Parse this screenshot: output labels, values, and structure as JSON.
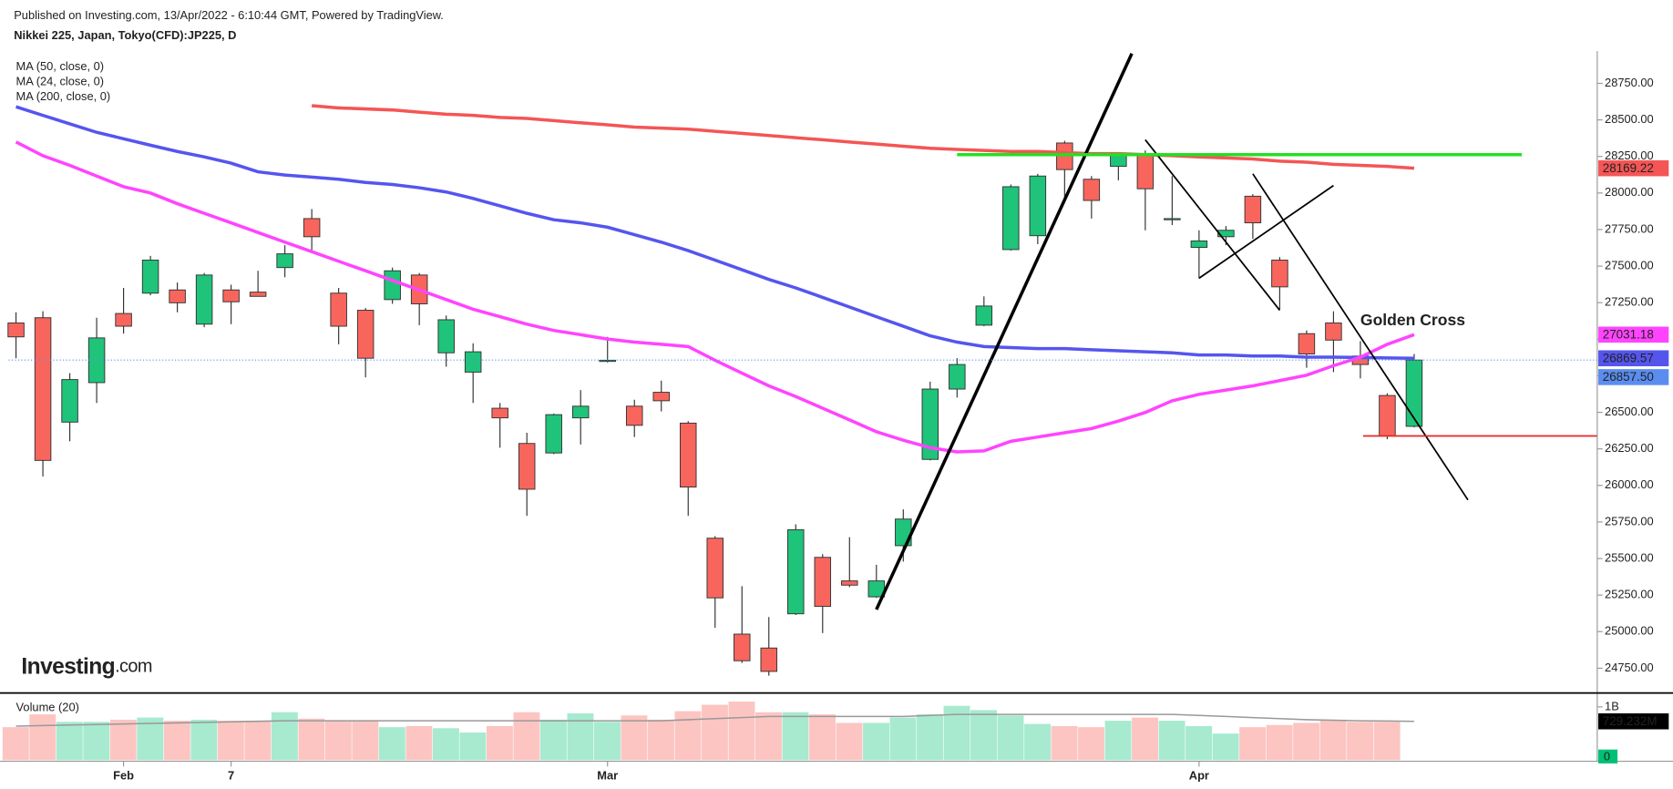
{
  "chart_data": {
    "type": "candlestick",
    "source": "Published on Investing.com, 13/Apr/2022 - 6:10:44 GMT, Powered by TradingView.",
    "title": "Nikkei 225, Japan, Tokyo(CFD):JP225, D",
    "logo": {
      "text": "Investing",
      "suffix": ".com"
    },
    "categories": [
      null,
      null,
      null,
      null,
      "Feb",
      null,
      null,
      null,
      "7",
      null,
      null,
      null,
      null,
      null,
      null,
      null,
      null,
      null,
      null,
      null,
      null,
      null,
      "Mar",
      null,
      null,
      null,
      null,
      null,
      null,
      null,
      null,
      null,
      null,
      null,
      null,
      null,
      null,
      null,
      null,
      null,
      null,
      null,
      null,
      null,
      "Apr",
      null,
      null,
      null,
      null,
      null,
      null,
      null,
      null
    ],
    "open": [
      27111,
      27147,
      26433,
      26703,
      27176,
      27315,
      27337,
      27103,
      27337,
      27322,
      27490,
      27825,
      27315,
      27198,
      27271,
      27439,
      26907,
      26775,
      26528,
      26287,
      26222,
      26462,
      26848,
      26542,
      26637,
      26426,
      25639,
      24983,
      24888,
      25122,
      25508,
      25347,
      25238,
      25588,
      26178,
      26659,
      27096,
      27613,
      27708,
      28342,
      28094,
      28182,
      28262,
      27817,
      27628,
      27701,
      27978,
      27541,
      27038,
      27111,
      26885,
      26615,
      26404
    ],
    "high": [
      27184,
      27191,
      26768,
      27147,
      27351,
      27570,
      27388,
      27453,
      27373,
      27468,
      27643,
      27890,
      27351,
      27213,
      27490,
      27453,
      27162,
      26972,
      26564,
      26360,
      26491,
      26652,
      27016,
      26586,
      26717,
      26440,
      25653,
      25311,
      25100,
      25734,
      25530,
      25646,
      25457,
      25836,
      26710,
      26870,
      27293,
      28058,
      28131,
      28357,
      28116,
      28276,
      28291,
      28116,
      27745,
      27774,
      27992,
      27562,
      27060,
      27191,
      26987,
      26630,
      26899
    ],
    "low": [
      26870,
      26061,
      26302,
      26564,
      27038,
      27300,
      27184,
      27082,
      27103,
      27293,
      27424,
      27592,
      26965,
      26739,
      27242,
      27096,
      26812,
      26564,
      26258,
      25792,
      26214,
      26280,
      26841,
      26331,
      26506,
      25792,
      25027,
      24786,
      24699,
      25114,
      24990,
      25304,
      25231,
      25479,
      26171,
      26601,
      27089,
      27606,
      27650,
      27956,
      27825,
      28087,
      27745,
      27781,
      27417,
      27643,
      27686,
      27205,
      26805,
      26775,
      26732,
      26316,
      26397
    ],
    "close": [
      27016,
      26171,
      26724,
      27009,
      27089,
      27541,
      27249,
      27439,
      27256,
      27293,
      27584,
      27701,
      27089,
      26870,
      27468,
      27242,
      27133,
      26914,
      26462,
      25974,
      26484,
      26542,
      26856,
      26411,
      26579,
      25989,
      25231,
      24801,
      24728,
      25697,
      25173,
      25318,
      25347,
      25770,
      26659,
      26827,
      27227,
      28043,
      28116,
      28160,
      27949,
      28255,
      28029,
      27825,
      27672,
      27745,
      27796,
      27358,
      26899,
      26994,
      26827,
      26338,
      26857.5
    ],
    "close_label": "26857.50",
    "close_color": "#5b8def",
    "up_color": "#1fc37a",
    "down_color": "#f8655d",
    "series": [
      {
        "name": "MA (50, close, 0)",
        "color": "#5555ee",
        "values": [
          28590,
          28531,
          28473,
          28415,
          28371,
          28327,
          28284,
          28247,
          28204,
          28145,
          28123,
          28109,
          28094,
          28072,
          28058,
          28036,
          28007,
          27963,
          27912,
          27861,
          27817,
          27796,
          27766,
          27715,
          27664,
          27606,
          27541,
          27475,
          27409,
          27351,
          27286,
          27220,
          27154,
          27089,
          27023,
          26980,
          26950,
          26943,
          26936,
          26936,
          26928,
          26921,
          26914,
          26907,
          26892,
          26892,
          26885,
          26885,
          26877,
          26877,
          26875,
          26872,
          26869.57
        ]
      },
      {
        "name": "MA (24, close, 0)",
        "color": "#ff44ff",
        "values": [
          28349,
          28255,
          28189,
          28116,
          28043,
          28000,
          27927,
          27861,
          27796,
          27730,
          27664,
          27599,
          27533,
          27468,
          27402,
          27337,
          27271,
          27205,
          27154,
          27103,
          27060,
          27031,
          27001,
          26980,
          26965,
          26950,
          26856,
          26768,
          26681,
          26608,
          26528,
          26448,
          26367,
          26309,
          26258,
          26229,
          26236,
          26302,
          26331,
          26360,
          26389,
          26440,
          26499,
          26579,
          26623,
          26652,
          26681,
          26717,
          26754,
          26819,
          26877,
          26965,
          27031.18
        ]
      },
      {
        "name": "MA (200, close, 0)",
        "color": "#f45555",
        "values": [
          null,
          null,
          null,
          null,
          null,
          null,
          null,
          null,
          null,
          null,
          null,
          28597,
          28582,
          28575,
          28568,
          28553,
          28539,
          28531,
          28517,
          28510,
          28495,
          28480,
          28466,
          28451,
          28444,
          28437,
          28422,
          28408,
          28393,
          28378,
          28364,
          28349,
          28335,
          28320,
          28306,
          28298,
          28291,
          28284,
          28284,
          28276,
          28269,
          28269,
          28262,
          28255,
          28247,
          28240,
          28233,
          28218,
          28211,
          28196,
          28189,
          28182,
          28169.22
        ]
      }
    ],
    "ylim": [
      24580,
      28970
    ],
    "yticks": [
      {
        "value": 24750,
        "label": "24750.00"
      },
      {
        "value": 25000,
        "label": "25000.00"
      },
      {
        "value": 25250,
        "label": "25250.00"
      },
      {
        "value": 25500,
        "label": "25500.00"
      },
      {
        "value": 25750,
        "label": "25750.00"
      },
      {
        "value": 26000,
        "label": "26000.00"
      },
      {
        "value": 26250,
        "label": "26250.00"
      },
      {
        "value": 26500,
        "label": "26500.00"
      },
      {
        "value": 26750,
        "label": "26750.00"
      },
      {
        "value": 27000,
        "label": "27000.00"
      },
      {
        "value": 27250,
        "label": "27250.00"
      },
      {
        "value": 27500,
        "label": "27500.00"
      },
      {
        "value": 27750,
        "label": "27750.00"
      },
      {
        "value": 28000,
        "label": "28000.00"
      },
      {
        "value": 28250,
        "label": "28250.00"
      },
      {
        "value": 28500,
        "label": "28500.00"
      },
      {
        "value": 28750,
        "label": "28750.00"
      }
    ],
    "volume": {
      "title": "Volume (20)",
      "values": [
        620000000,
        860000000,
        720000000,
        720000000,
        760000000,
        800000000,
        740000000,
        760000000,
        740000000,
        740000000,
        900000000,
        780000000,
        740000000,
        740000000,
        620000000,
        640000000,
        600000000,
        520000000,
        640000000,
        900000000,
        760000000,
        880000000,
        720000000,
        840000000,
        760000000,
        920000000,
        1040000000,
        1100000000,
        900000000,
        900000000,
        860000000,
        700000000,
        700000000,
        800000000,
        860000000,
        1020000000,
        940000000,
        840000000,
        680000000,
        640000000,
        620000000,
        740000000,
        800000000,
        740000000,
        640000000,
        500000000,
        620000000,
        660000000,
        700000000,
        760000000,
        720000000,
        720000000,
        0
      ],
      "up_color": "#a7ead0",
      "down_color": "#fcc5c2",
      "last_color": "#00c076",
      "ma": {
        "color": "#999999",
        "last_label": "729.232M",
        "values": [
          640000000,
          650000000,
          660000000,
          670000000,
          680000000,
          690000000,
          700000000,
          710000000,
          720000000,
          730000000,
          740000000,
          740000000,
          740000000,
          740000000,
          740000000,
          740000000,
          740000000,
          740000000,
          740000000,
          740000000,
          740000000,
          740000000,
          740000000,
          740000000,
          740000000,
          760000000,
          780000000,
          800000000,
          820000000,
          820000000,
          820000000,
          820000000,
          820000000,
          820000000,
          840000000,
          860000000,
          860000000,
          860000000,
          860000000,
          860000000,
          860000000,
          860000000,
          860000000,
          860000000,
          840000000,
          820000000,
          800000000,
          780000000,
          760000000,
          750000000,
          740000000,
          735000000,
          729232000
        ]
      },
      "ylim": [
        0,
        1220000000
      ],
      "yticks": [
        {
          "value": 1000000000,
          "label": "1B"
        }
      ]
    },
    "drawings": [
      {
        "x": [
          32,
          41.5
        ],
        "y": [
          25151,
          28954
        ],
        "color": "#000000",
        "thick": true
      },
      {
        "x": [
          42,
          47
        ],
        "y": [
          28364,
          27198
        ],
        "color": "#000000",
        "thick": false
      },
      {
        "x": [
          44,
          49
        ],
        "y": [
          27417,
          28051
        ],
        "color": "#000000",
        "thick": false
      },
      {
        "x": [
          46,
          54
        ],
        "y": [
          28131,
          25901
        ],
        "color": "#000000",
        "thick": false
      },
      {
        "x": [
          35,
          56
        ],
        "y": [
          28262,
          28262
        ],
        "color": "#22e022",
        "thick": true
      },
      {
        "x": [
          50.1,
          58.8
        ],
        "y": [
          26338,
          26338
        ],
        "color": "#ee2222",
        "thick": false
      }
    ],
    "annotations": [
      {
        "text": "Golden Cross",
        "x": 50,
        "y": 27125
      }
    ]
  }
}
